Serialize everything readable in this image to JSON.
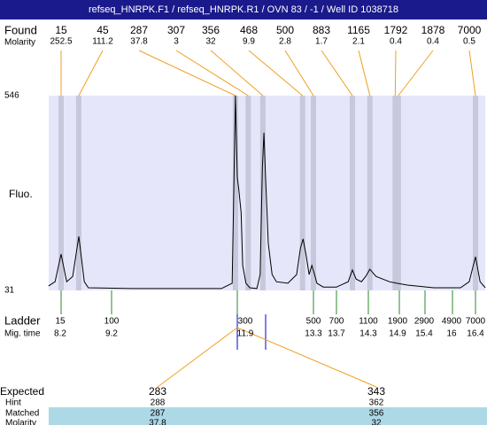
{
  "chart_data": {
    "type": "line",
    "title": "refseq_HNRPK.F1 / refseq_HNRPK.R1 / OVN 83 / -1 / Well ID 1038718",
    "ylabel": "Fluo.",
    "ylim": [
      31,
      546
    ],
    "yticks": [
      31,
      546
    ],
    "color": "#000000",
    "band_color": "#c8c8dc",
    "plot_color": "#e6e6fa",
    "x": [
      7.95,
      8.08,
      8.2,
      8.31,
      8.43,
      8.55,
      8.66,
      8.74,
      9.66,
      11.56,
      11.79,
      11.83,
      11.86,
      11.9,
      11.93,
      11.97,
      12.0,
      12.06,
      12.13,
      12.26,
      12.32,
      12.36,
      12.39,
      12.42,
      12.47,
      12.54,
      12.62,
      12.83,
      12.99,
      13.06,
      13.11,
      13.17,
      13.22,
      13.27,
      13.32,
      13.36,
      13.47,
      13.7,
      13.92,
      14.0,
      14.07,
      14.17,
      14.25,
      14.33,
      14.45,
      14.71,
      14.85,
      15.06,
      15.59,
      16.14,
      16.29,
      16.4,
      16.48,
      16.57
    ],
    "values": [
      43,
      54,
      127,
      54,
      68,
      174,
      54,
      38,
      36,
      36,
      50,
      331,
      546,
      331,
      295,
      237,
      97,
      50,
      38,
      36,
      73,
      354,
      448,
      331,
      155,
      73,
      54,
      50,
      73,
      143,
      167,
      120,
      73,
      97,
      73,
      50,
      40,
      40,
      54,
      85,
      61,
      54,
      68,
      87,
      68,
      54,
      50,
      45,
      38,
      38,
      54,
      120,
      54,
      38
    ]
  },
  "found": {
    "label": "Found",
    "sublabel": "Molarity",
    "sizes": [
      15,
      45,
      287,
      307,
      356,
      468,
      500,
      883,
      1165,
      1792,
      1878,
      7000
    ],
    "molarity": [
      252.5,
      111.2,
      37.8,
      3,
      32,
      9.9,
      2.8,
      1.7,
      2.1,
      0.4,
      0.4,
      0.5
    ],
    "times": [
      8.2,
      8.55,
      11.86,
      12.1,
      12.37,
      13.1,
      13.3,
      14.0,
      14.33,
      14.82,
      14.88,
      16.4
    ]
  },
  "ladder": {
    "label": "Ladder",
    "sublabel": "Mig. time",
    "sizes": [
      15,
      100,
      300,
      500,
      700,
      1100,
      1900,
      2900,
      4900,
      7000
    ],
    "times": [
      8.2,
      9.2,
      11.9,
      13.3,
      13.7,
      14.3,
      14.9,
      15.4,
      16,
      16.4
    ]
  },
  "expected": {
    "labels": [
      "Expected",
      "Hint",
      "Matched",
      "Molarity"
    ],
    "columns": [
      [
        283,
        288,
        287,
        37.8
      ],
      [
        343,
        362,
        356,
        32
      ]
    ]
  }
}
